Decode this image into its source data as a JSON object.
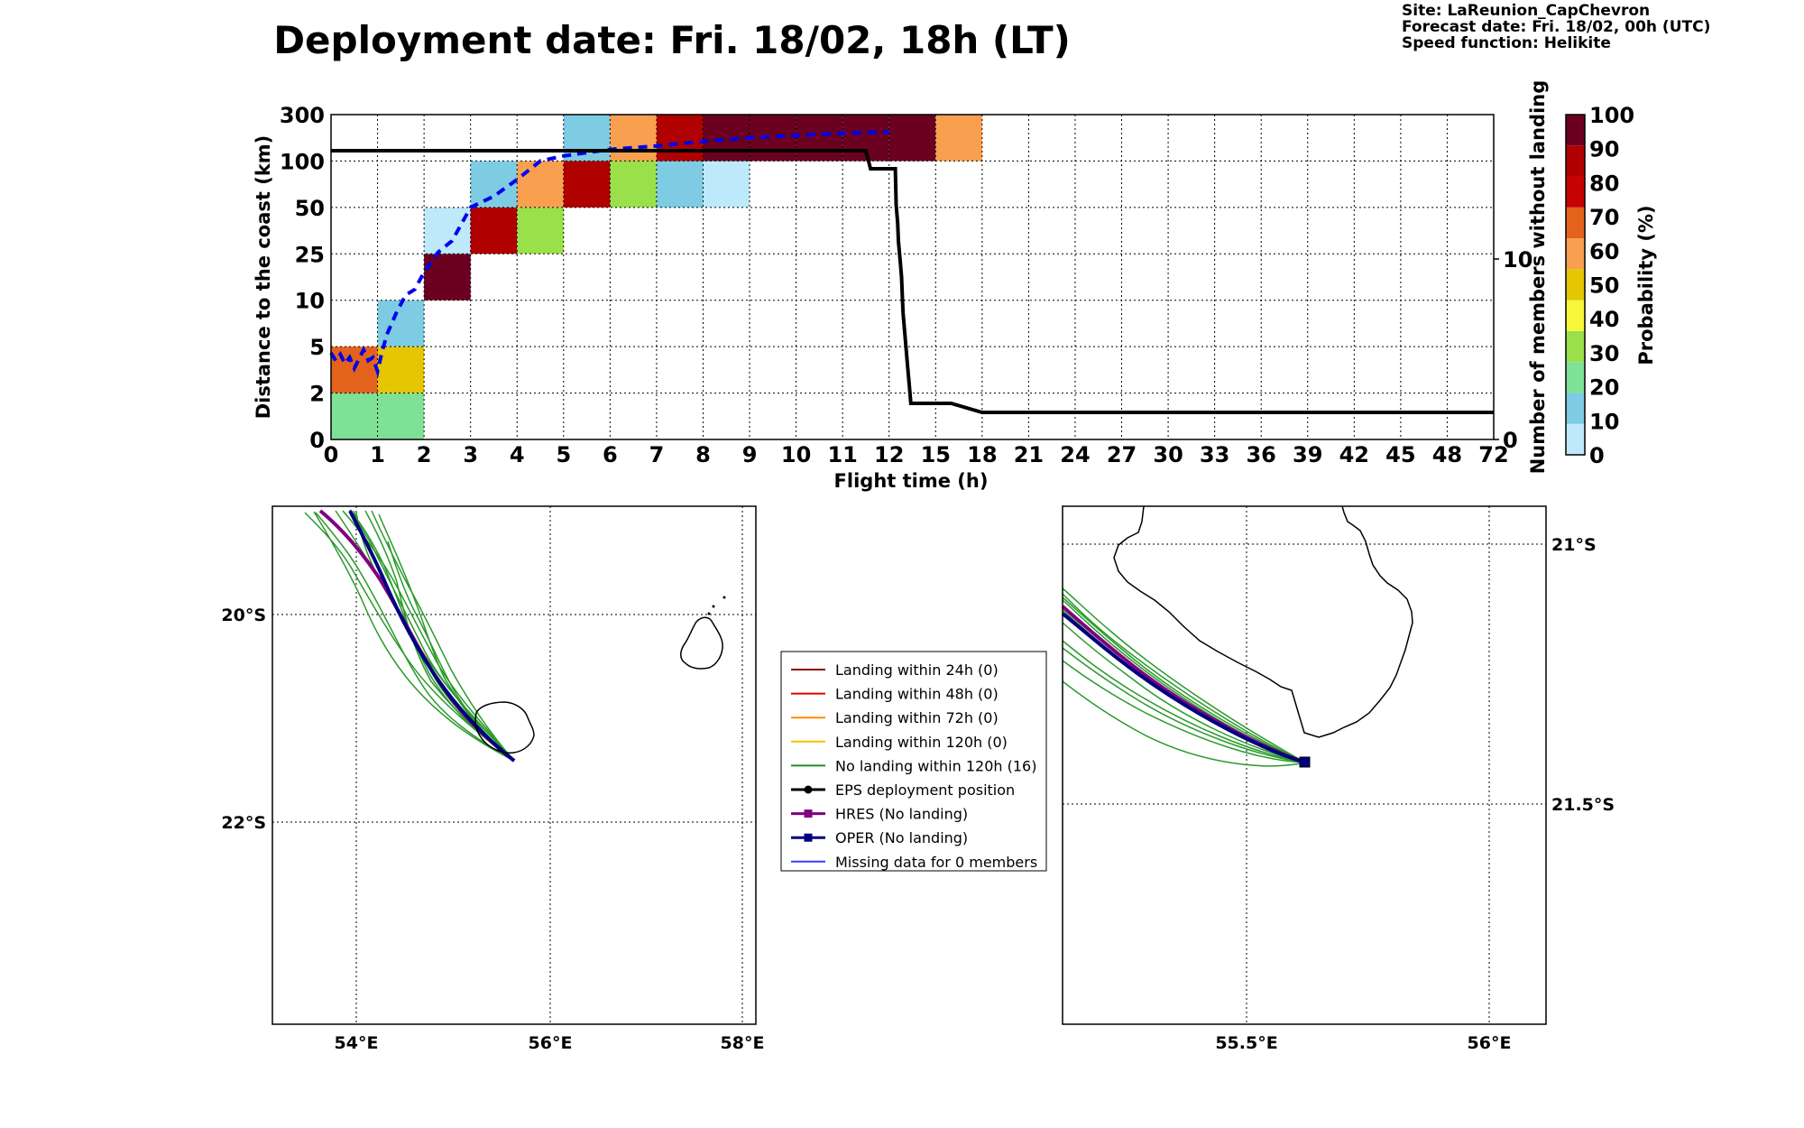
{
  "header": {
    "title": "Deployment date: Fri. 18/02, 18h (LT)",
    "site": "Site: LaReunion_CapChevron",
    "forecast": "Forecast date: Fri. 18/02, 00h (UTC)",
    "speed": "Speed function: Helikite"
  },
  "chart_data": [
    {
      "type": "heatmap",
      "xlabel": "Flight time (h)",
      "ylabel": "Distance to the coast (km)",
      "y2label": "Number of members without landing",
      "x_ticks": [
        "0",
        "1",
        "2",
        "3",
        "4",
        "5",
        "6",
        "7",
        "8",
        "9",
        "10",
        "11",
        "12",
        "15",
        "18",
        "21",
        "24",
        "27",
        "30",
        "33",
        "36",
        "39",
        "42",
        "45",
        "48",
        "72"
      ],
      "y_ticks": [
        "0",
        "2",
        "5",
        "10",
        "25",
        "50",
        "100",
        "300"
      ],
      "y2_ticks": [
        "0",
        "10"
      ],
      "y2lim": [
        0,
        18
      ],
      "colorbar": {
        "label": "Probability (%)",
        "ticks": [
          "0",
          "10",
          "20",
          "30",
          "40",
          "50",
          "60",
          "70",
          "80",
          "90",
          "100"
        ],
        "colors": [
          "#bde9fb",
          "#7ecbe4",
          "#7fe195",
          "#99e04a",
          "#f7f73a",
          "#e4c603",
          "#f89f50",
          "#e4631c",
          "#c70202",
          "#b00000",
          "#6b0020"
        ]
      },
      "cells": [
        {
          "x": 0,
          "y": 0,
          "p": 20
        },
        {
          "x": 0,
          "y": 1,
          "p": 70
        },
        {
          "x": 1,
          "y": 0,
          "p": 20
        },
        {
          "x": 1,
          "y": 1,
          "p": 50
        },
        {
          "x": 1,
          "y": 2,
          "p": 10
        },
        {
          "x": 2,
          "y": 3,
          "p": 100
        },
        {
          "x": 2,
          "y": 4,
          "p": 0
        },
        {
          "x": 3,
          "y": 4,
          "p": 90
        },
        {
          "x": 3,
          "y": 5,
          "p": 10
        },
        {
          "x": 4,
          "y": 4,
          "p": 30
        },
        {
          "x": 4,
          "y": 5,
          "p": 60
        },
        {
          "x": 5,
          "y": 5,
          "p": 90
        },
        {
          "x": 5,
          "y": 6,
          "p": 10
        },
        {
          "x": 6,
          "y": 5,
          "p": 30
        },
        {
          "x": 6,
          "y": 6,
          "p": 60
        },
        {
          "x": 7,
          "y": 5,
          "p": 10
        },
        {
          "x": 7,
          "y": 6,
          "p": 90
        },
        {
          "x": 8,
          "y": 5,
          "p": 0
        },
        {
          "x": 8,
          "y": 6,
          "p": 100
        },
        {
          "x": 9,
          "y": 6,
          "p": 100
        },
        {
          "x": 10,
          "y": 6,
          "p": 100
        },
        {
          "x": 11,
          "y": 6,
          "p": 100
        },
        {
          "x": 12,
          "y": 6,
          "p": 100
        },
        {
          "x": 13,
          "y": 6,
          "p": 60
        }
      ],
      "series": [
        {
          "name": "mean distance",
          "style": "dashed-blue",
          "points": [
            [
              0,
              4.6
            ],
            [
              0.1,
              4.1
            ],
            [
              0.2,
              4.5
            ],
            [
              0.3,
              3.9
            ],
            [
              0.4,
              4.3
            ],
            [
              0.5,
              3.6
            ],
            [
              0.6,
              4.2
            ],
            [
              0.7,
              4.8
            ],
            [
              0.8,
              4.1
            ],
            [
              0.9,
              4.3
            ],
            [
              1.0,
              3.4
            ],
            [
              1.1,
              4.7
            ],
            [
              1.2,
              6.3
            ],
            [
              1.4,
              8.6
            ],
            [
              1.6,
              11.6
            ],
            [
              1.8,
              13.5
            ],
            [
              2.0,
              19.0
            ],
            [
              2.3,
              25.8
            ],
            [
              2.6,
              32
            ],
            [
              3.0,
              50
            ],
            [
              3.5,
              62
            ],
            [
              4.0,
              80
            ],
            [
              4.5,
              100
            ],
            [
              5.0,
              122
            ],
            [
              6.0,
              150
            ],
            [
              7.0,
              165
            ],
            [
              8.0,
              185
            ],
            [
              9.0,
              200
            ],
            [
              10.0,
              210
            ],
            [
              11.0,
              220
            ],
            [
              12.0,
              225
            ]
          ]
        },
        {
          "name": "members without landing",
          "style": "solid-black",
          "points": [
            [
              0,
              16
            ],
            [
              11.5,
              16
            ],
            [
              11.6,
              15
            ],
            [
              12.4,
              15
            ],
            [
              12.45,
              13
            ],
            [
              12.55,
              12
            ],
            [
              12.6,
              11
            ],
            [
              12.7,
              10
            ],
            [
              12.8,
              9
            ],
            [
              12.85,
              8
            ],
            [
              12.9,
              7
            ],
            [
              13.0,
              6
            ],
            [
              13.1,
              5
            ],
            [
              13.2,
              4
            ],
            [
              13.3,
              3
            ],
            [
              13.4,
              2
            ],
            [
              14,
              2
            ],
            [
              16,
              2
            ],
            [
              18,
              1.5
            ],
            [
              72,
              1.5
            ]
          ]
        }
      ]
    },
    {
      "type": "map",
      "x_ticks": [
        "54°E",
        "56°E",
        "58°E"
      ],
      "y_ticks": [
        "20°S",
        "22°S"
      ]
    },
    {
      "type": "map",
      "x_ticks": [
        "55.5°E",
        "56°E"
      ],
      "y_ticks": [
        "21°S",
        "21.5°S"
      ]
    }
  ],
  "legend": {
    "items": [
      {
        "label": "Landing within 24h (0)",
        "color": "#8b0000",
        "marker": "none"
      },
      {
        "label": "Landing within 48h (0)",
        "color": "#e60000",
        "marker": "none"
      },
      {
        "label": "Landing within 72h (0)",
        "color": "#ff8c00",
        "marker": "none"
      },
      {
        "label": "Landing within 120h (0)",
        "color": "#f2c400",
        "marker": "none"
      },
      {
        "label": "No landing within 120h (16)",
        "color": "#228b22",
        "marker": "none"
      },
      {
        "label": "EPS deployment position",
        "color": "#000000",
        "marker": "circle"
      },
      {
        "label": "HRES (No landing)",
        "color": "#800080",
        "marker": "square"
      },
      {
        "label": "OPER (No landing)",
        "color": "#000080",
        "marker": "square"
      },
      {
        "label": "Missing data for 0 members",
        "color": "#3b3bff",
        "marker": "none"
      }
    ]
  }
}
